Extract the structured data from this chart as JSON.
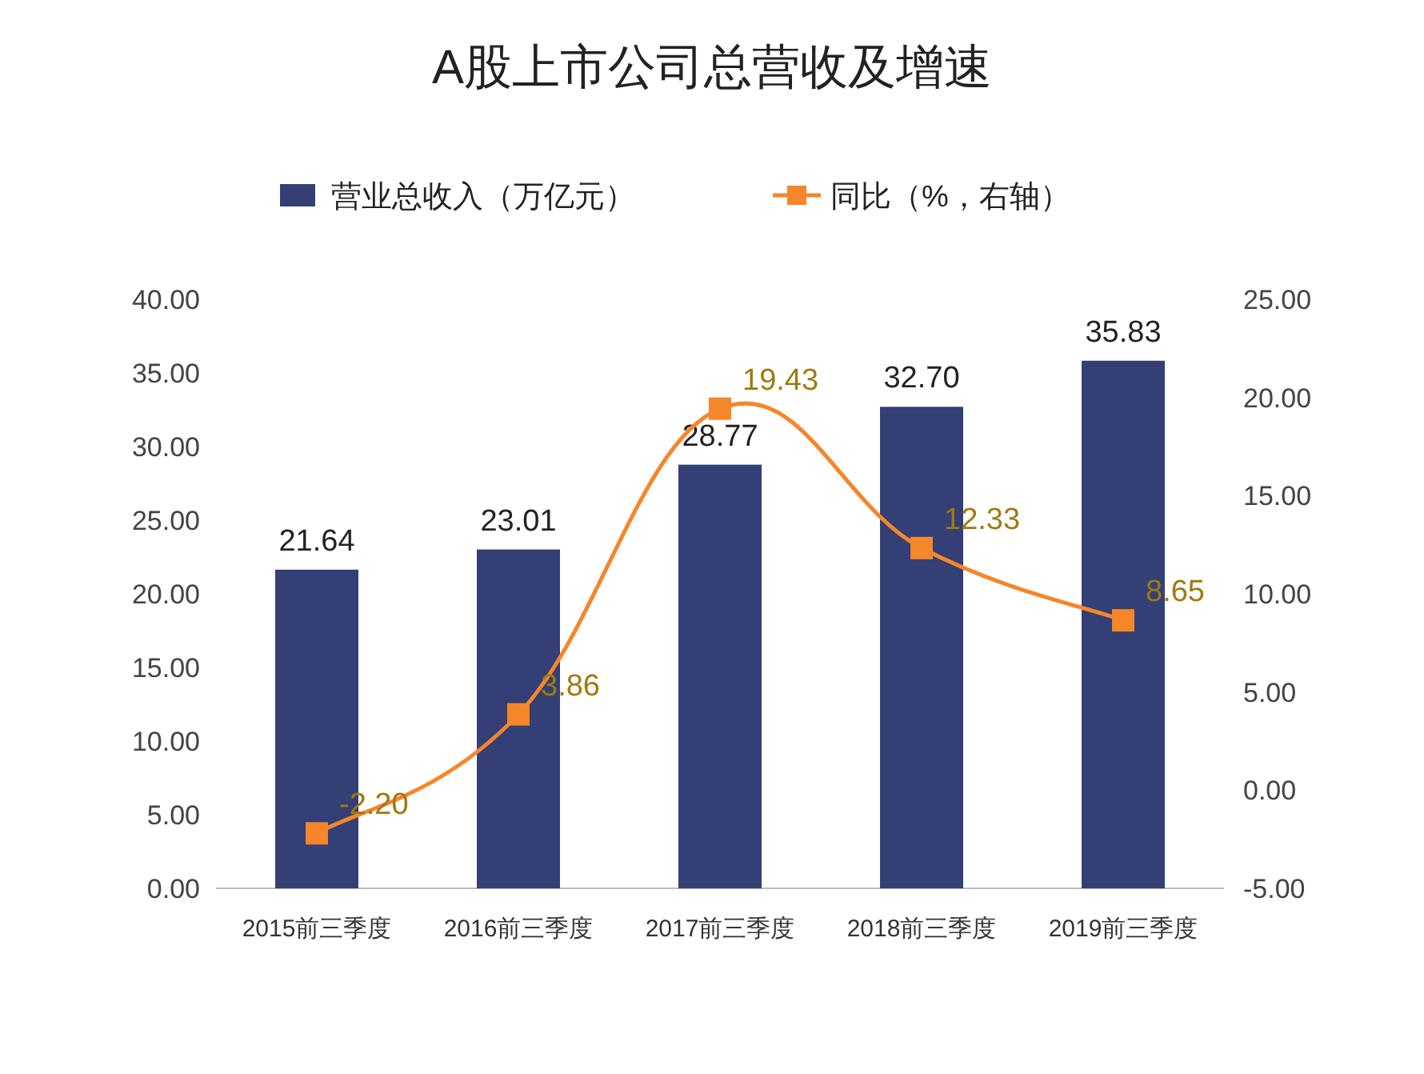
{
  "chart_data": {
    "type": "bar",
    "title": "A股上市公司总营收及增速",
    "categories": [
      "2015前三季度",
      "2016前三季度",
      "2017前三季度",
      "2018前三季度",
      "2019前三季度"
    ],
    "series": [
      {
        "name": "营业总收入（万亿元）",
        "color": "#333f75",
        "values": [
          21.64,
          23.01,
          28.77,
          32.7,
          35.83
        ],
        "value_labels": [
          "21.64",
          "23.01",
          "28.77",
          "32.70",
          "35.83"
        ]
      },
      {
        "name": "同比（%，右轴）",
        "type": "line",
        "axis": "y2",
        "color": "#f5862a",
        "marker": "square",
        "values": [
          -2.2,
          3.86,
          19.43,
          12.33,
          8.65
        ],
        "value_labels": [
          "-2.20",
          "3.86",
          "19.43",
          "12.33",
          "8.65"
        ]
      }
    ],
    "ylim": [
      0,
      40
    ],
    "yticks": [
      {
        "value": 0,
        "label": "0.00"
      },
      {
        "value": 5,
        "label": "5.00"
      },
      {
        "value": 10,
        "label": "10.00"
      },
      {
        "value": 15,
        "label": "15.00"
      },
      {
        "value": 20,
        "label": "20.00"
      },
      {
        "value": 25,
        "label": "25.00"
      },
      {
        "value": 30,
        "label": "30.00"
      },
      {
        "value": 35,
        "label": "35.00"
      },
      {
        "value": 40,
        "label": "40.00"
      }
    ],
    "y2lim": [
      -5,
      25
    ],
    "y2ticks": [
      {
        "value": -5,
        "label": "-5.00"
      },
      {
        "value": 0,
        "label": "0.00"
      },
      {
        "value": 5,
        "label": "5.00"
      },
      {
        "value": 10,
        "label": "10.00"
      },
      {
        "value": 15,
        "label": "15.00"
      },
      {
        "value": 20,
        "label": "20.00"
      },
      {
        "value": 25,
        "label": "25.00"
      }
    ],
    "legend": "top",
    "grid": false
  }
}
